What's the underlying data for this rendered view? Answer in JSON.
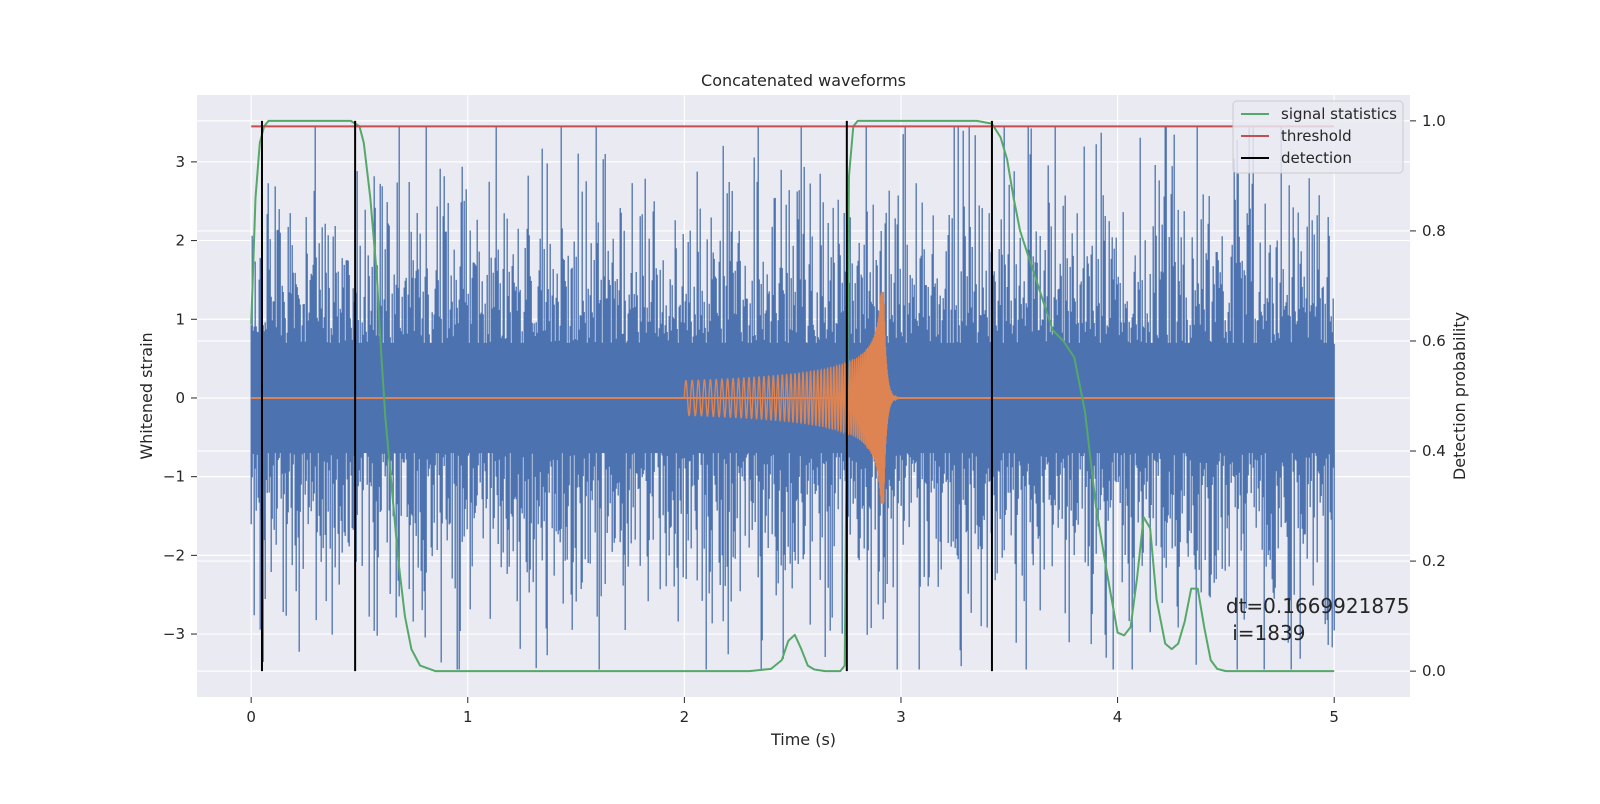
{
  "chart_data": {
    "type": "line",
    "title": "Concatenated waveforms",
    "xlabel": "Time (s)",
    "ylabel": "Whitened strain",
    "y2label": "Detection probability",
    "xlim": [
      -0.25,
      5.35
    ],
    "ylim": [
      -3.8,
      3.85
    ],
    "y2lim": [
      -0.047,
      1.047
    ],
    "x_ticks": [
      0,
      1,
      2,
      3,
      4,
      5
    ],
    "y_ticks": [
      -3,
      -2,
      -1,
      0,
      1,
      2,
      3
    ],
    "y2_ticks": [
      0.0,
      0.2,
      0.4,
      0.6,
      0.8,
      1.0
    ],
    "x_tick_labels": [
      "0",
      "1",
      "2",
      "3",
      "4",
      "5"
    ],
    "y_tick_labels": [
      "−3",
      "−2",
      "−1",
      "0",
      "1",
      "2",
      "3"
    ],
    "y2_tick_labels": [
      "0.0",
      "0.2",
      "0.4",
      "0.6",
      "0.8",
      "1.0"
    ],
    "grid": true,
    "legend_position": "top-right",
    "colors": {
      "background": "#eaeaf2",
      "noise": "#4c72b0",
      "injection": "#dd8452",
      "signal_statistics": "#55a868",
      "threshold": "#c44e52",
      "detection": "#000000",
      "grid": "#ffffff"
    },
    "series": [
      {
        "name": "whitened noise",
        "axis": "left",
        "style": "dense-noise",
        "x_range": [
          0,
          5
        ],
        "spread": 0.7,
        "peak": 3.45
      },
      {
        "name": "injected chirp",
        "axis": "left",
        "style": "chirp",
        "start": 2.0,
        "merger": 2.92,
        "ringdown_end": 3.0,
        "amp_start": 0.22,
        "amp_peak": 1.35
      },
      {
        "name": "signal statistics",
        "axis": "right",
        "x": [
          0.0,
          0.02,
          0.04,
          0.06,
          0.08,
          0.12,
          0.2,
          0.3,
          0.4,
          0.46,
          0.5,
          0.52,
          0.55,
          0.58,
          0.6,
          0.62,
          0.65,
          0.68,
          0.71,
          0.74,
          0.78,
          0.85,
          1.0,
          1.5,
          2.0,
          2.3,
          2.4,
          2.45,
          2.48,
          2.51,
          2.54,
          2.57,
          2.6,
          2.65,
          2.7,
          2.72,
          2.74,
          2.76,
          2.78,
          2.8,
          2.85,
          3.0,
          3.2,
          3.35,
          3.42,
          3.46,
          3.49,
          3.52,
          3.55,
          3.6,
          3.65,
          3.7,
          3.75,
          3.8,
          3.85,
          3.9,
          3.95,
          4.0,
          4.03,
          4.06,
          4.09,
          4.12,
          4.15,
          4.18,
          4.22,
          4.25,
          4.28,
          4.31,
          4.34,
          4.37,
          4.4,
          4.43,
          4.46,
          4.5,
          4.6,
          4.8,
          5.0
        ],
        "y": [
          0.63,
          0.86,
          0.96,
          0.99,
          1.0,
          1.0,
          1.0,
          1.0,
          1.0,
          1.0,
          0.99,
          0.96,
          0.86,
          0.72,
          0.58,
          0.46,
          0.33,
          0.2,
          0.1,
          0.04,
          0.01,
          0.0,
          0.0,
          0.0,
          0.0,
          0.0,
          0.004,
          0.02,
          0.055,
          0.066,
          0.04,
          0.01,
          0.003,
          0.0,
          0.0,
          0.0,
          0.01,
          0.9,
          0.99,
          1.0,
          1.0,
          1.0,
          1.0,
          1.0,
          0.995,
          0.97,
          0.93,
          0.86,
          0.8,
          0.74,
          0.68,
          0.62,
          0.6,
          0.57,
          0.47,
          0.3,
          0.18,
          0.07,
          0.065,
          0.08,
          0.17,
          0.28,
          0.26,
          0.13,
          0.05,
          0.04,
          0.05,
          0.09,
          0.15,
          0.15,
          0.08,
          0.02,
          0.004,
          0.0,
          0.0,
          0.0,
          0.0
        ]
      },
      {
        "name": "threshold",
        "axis": "right",
        "x": [
          0,
          5
        ],
        "y": [
          0.99,
          0.99
        ]
      }
    ],
    "detections": [
      0.05,
      0.48,
      2.75,
      3.42
    ],
    "legend": [
      "signal statistics",
      "threshold",
      "detection"
    ],
    "annotation": {
      "dt": "dt=0.1669921875",
      "i": " i=1839",
      "x": 4.5,
      "y": -2.95
    }
  }
}
